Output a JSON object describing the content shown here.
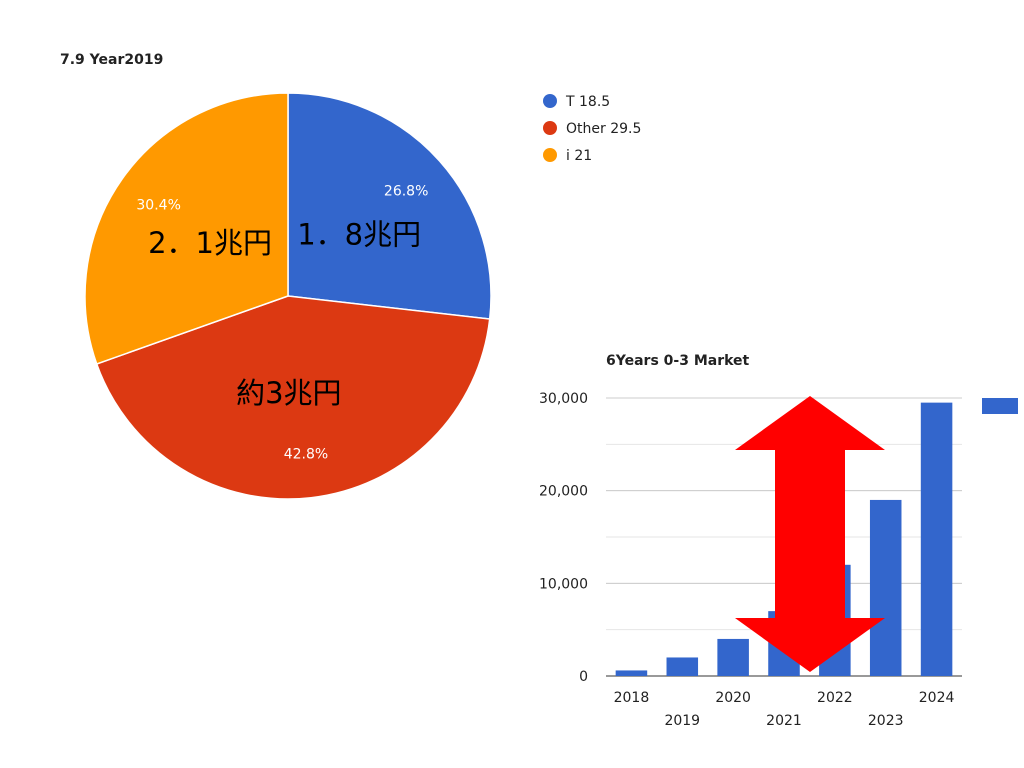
{
  "chart_data": [
    {
      "type": "pie",
      "title": "7.9 Year2019",
      "legend_position": "top-right",
      "slices": [
        {
          "name": "T 18.5",
          "value": 18.5,
          "percent_label": "26.8%",
          "annotation": "1．8兆円",
          "color": "#3366cc"
        },
        {
          "name": "Other 29.5",
          "value": 29.5,
          "percent_label": "42.8%",
          "annotation": "約3兆円",
          "color": "#dc3912"
        },
        {
          "name": "i 21",
          "value": 21,
          "percent_label": "30.4%",
          "annotation": "2．1兆円",
          "color": "#ff9900"
        }
      ]
    },
    {
      "type": "bar",
      "title": "6Years 0-3 Market",
      "categories": [
        "2018",
        "2019",
        "2020",
        "2021",
        "2022",
        "2023",
        "2024"
      ],
      "values": [
        600,
        2000,
        4000,
        7000,
        12000,
        19000,
        29500
      ],
      "ylim": [
        0,
        30000
      ],
      "yticks": [
        0,
        10000,
        20000,
        30000
      ],
      "ytick_labels": [
        "0",
        "10,000",
        "20,000",
        "30,000"
      ],
      "grid": true,
      "color": "#3366cc",
      "legend_swatch_color": "#3366cc",
      "overlay": {
        "shape": "double-headed-arrow",
        "color": "#ff0000"
      }
    }
  ]
}
